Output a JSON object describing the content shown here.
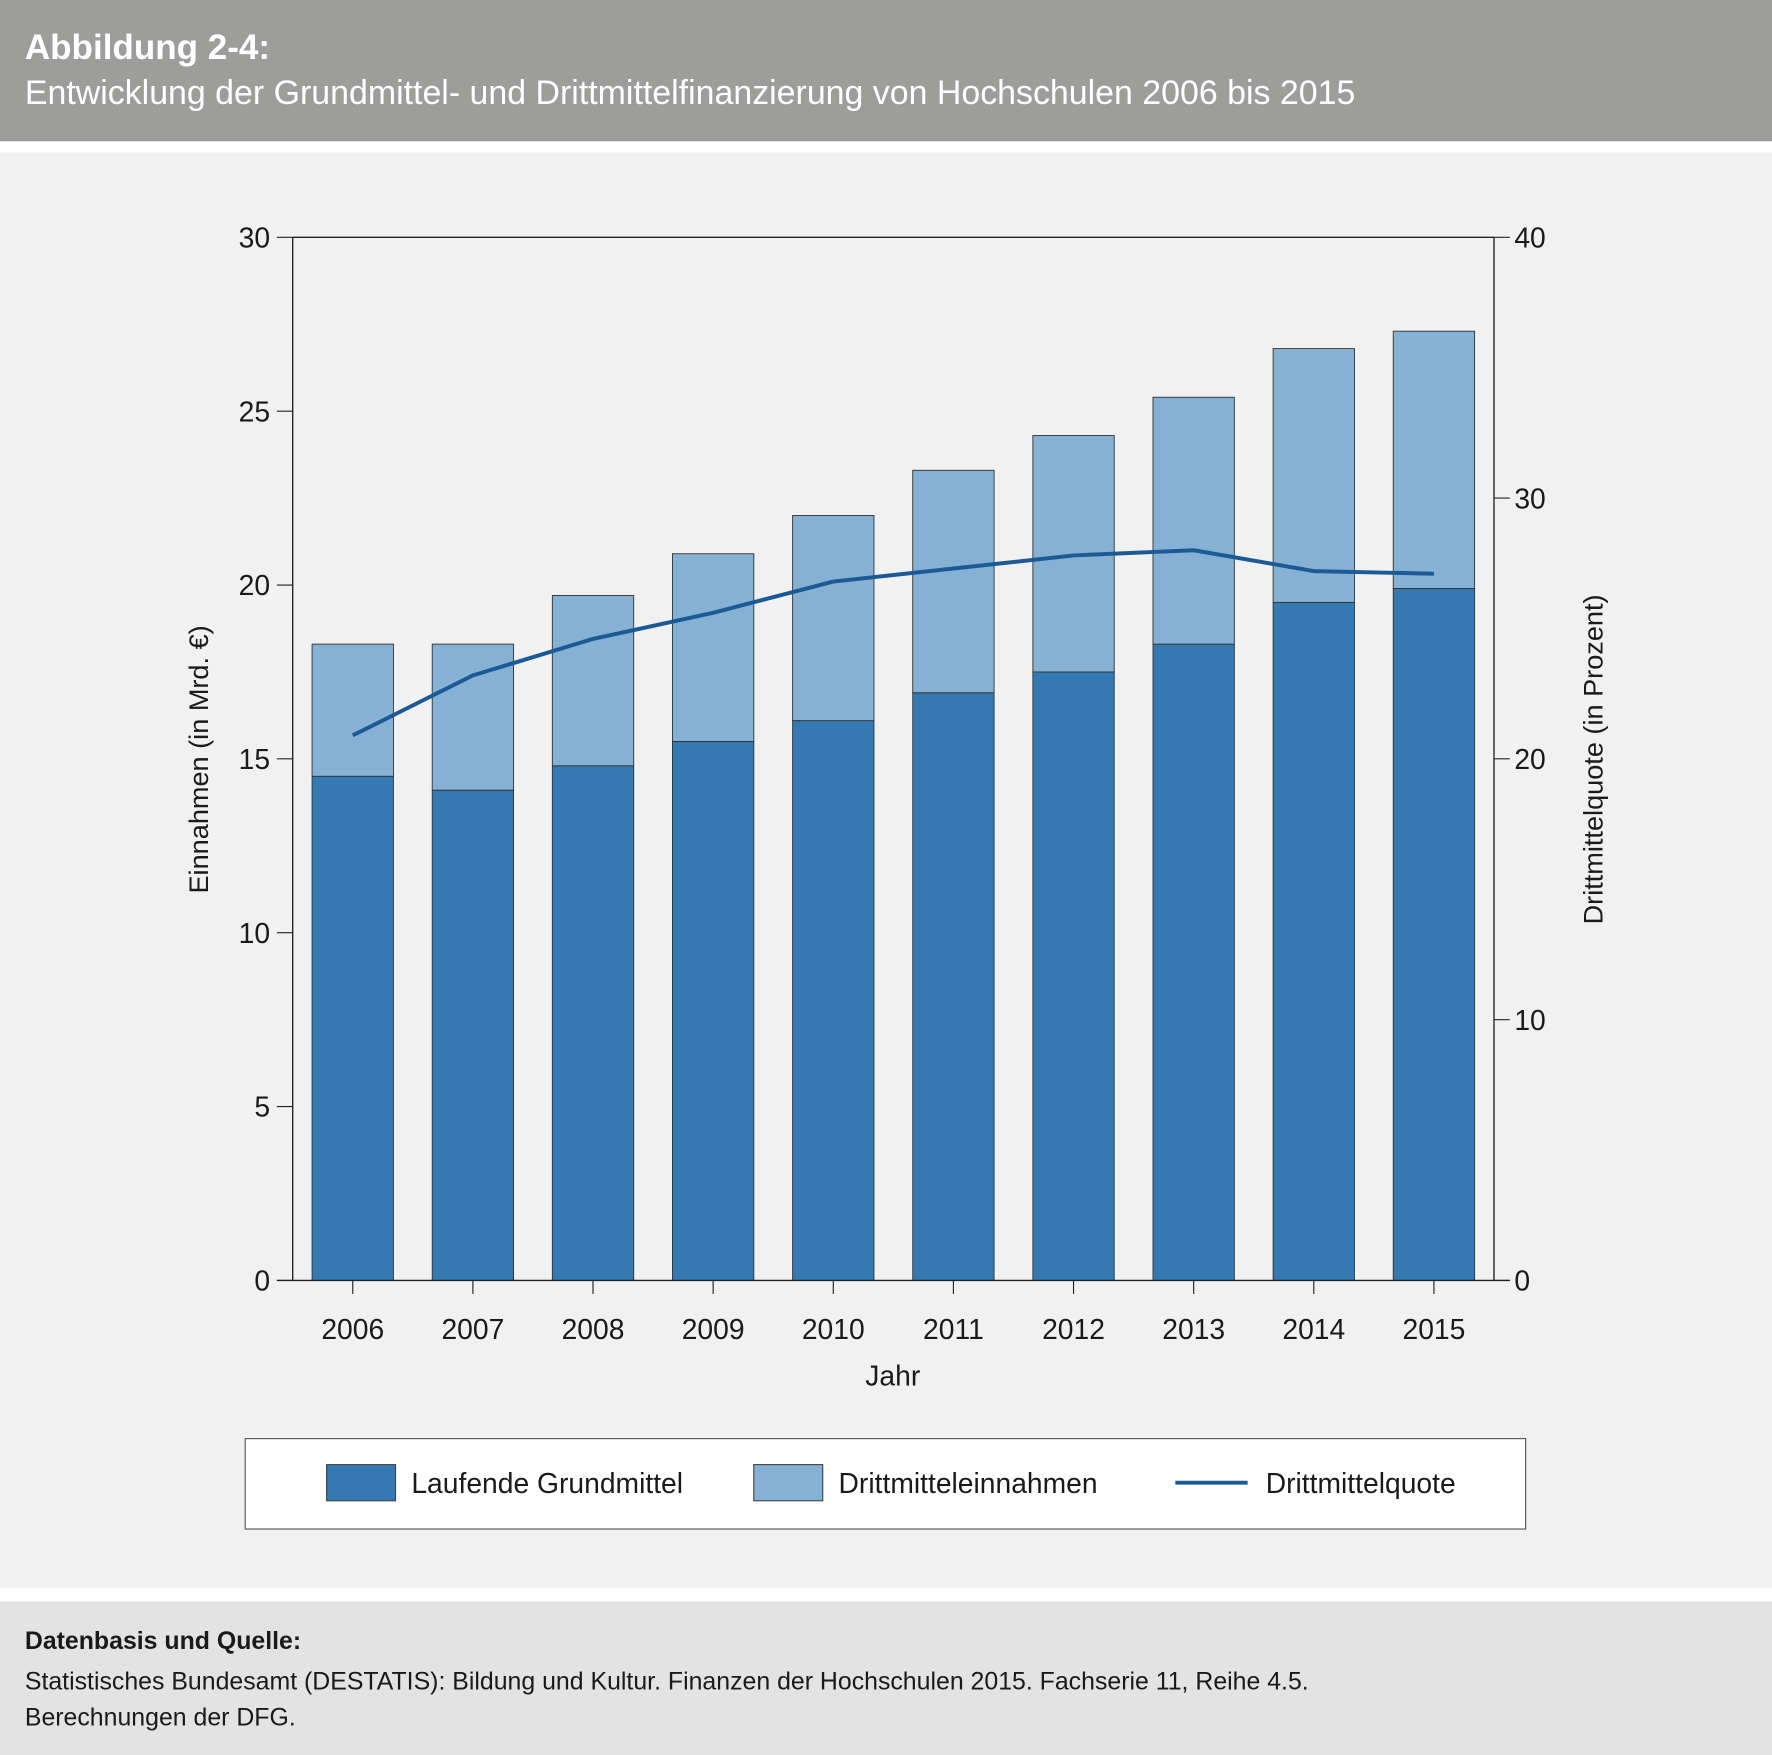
{
  "header": {
    "title": "Abbildung 2-4:",
    "subtitle": "Entwicklung der Grundmittel- und Drittmittelfinanzierung von Hochschulen 2006 bis 2015"
  },
  "footer": {
    "title": "Datenbasis und Quelle:",
    "line1": "Statistisches Bundesamt (DESTATIS): Bildung und Kultur. Finanzen der Hochschulen 2015. Fachserie 11, Reihe 4.5.",
    "line2": "Berechnungen der DFG."
  },
  "chart_data": {
    "type": "bar",
    "stacked": true,
    "categories": [
      "2006",
      "2007",
      "2008",
      "2009",
      "2010",
      "2011",
      "2012",
      "2013",
      "2014",
      "2015"
    ],
    "xlabel": "Jahr",
    "ylabel": "Einnahmen (in Mrd. €)",
    "y2label": "Drittmittelquote (in Prozent)",
    "ylim": [
      0,
      30
    ],
    "yticks": [
      "0",
      "5",
      "10",
      "15",
      "20",
      "25",
      "30"
    ],
    "y2lim": [
      0,
      40
    ],
    "y2ticks": [
      "0",
      "10",
      "20",
      "30",
      "40"
    ],
    "grid": false,
    "legend": "bottom",
    "series": [
      {
        "name": "Laufende Grundmittel",
        "kind": "bar",
        "axis": "left",
        "color": "#3579b3",
        "values": [
          14.5,
          14.1,
          14.8,
          15.5,
          16.1,
          16.9,
          17.5,
          18.3,
          19.5,
          19.9
        ]
      },
      {
        "name": "Drittmitteleinnahmen",
        "kind": "bar",
        "axis": "left",
        "color": "#85b1d4",
        "values": [
          3.8,
          4.2,
          4.9,
          5.4,
          5.9,
          6.4,
          6.8,
          7.1,
          7.3,
          7.4
        ]
      },
      {
        "name": "Drittmittelquote",
        "kind": "line",
        "axis": "right",
        "color": "#1b5a94",
        "values": [
          20.9,
          23.2,
          24.6,
          25.6,
          26.8,
          27.3,
          27.8,
          28.0,
          27.2,
          27.1
        ]
      }
    ]
  }
}
